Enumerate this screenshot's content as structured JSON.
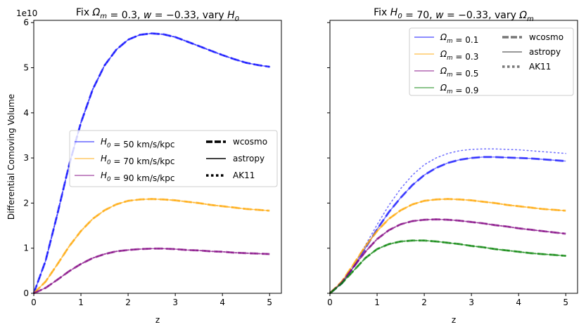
{
  "chart_data": [
    {
      "type": "line",
      "title": "Fix Ω_m = 0.3, w = −0.33, vary H_0",
      "xlabel": "z",
      "ylabel": "Differential Comoving Volume",
      "y_offset_label": "1e10",
      "xlim": [
        0,
        5.25
      ],
      "ylim": [
        0,
        6.05
      ],
      "xticks": [
        "0",
        "1",
        "2",
        "3",
        "4",
        "5"
      ],
      "yticks": [
        "0",
        "1",
        "2",
        "3",
        "4",
        "5",
        "6"
      ],
      "legend_location": "center-right",
      "series": [
        {
          "name": "H_0 = 50 km/s/kpc",
          "color": "#0000ff",
          "x": [
            0,
            0.25,
            0.5,
            0.75,
            1.0,
            1.25,
            1.5,
            1.75,
            2.0,
            2.25,
            2.5,
            2.75,
            3.0,
            3.25,
            3.5,
            3.75,
            4.0,
            4.25,
            4.5,
            4.75,
            5.0
          ],
          "y": [
            0,
            0.72,
            1.75,
            2.85,
            3.78,
            4.52,
            5.05,
            5.4,
            5.62,
            5.73,
            5.76,
            5.74,
            5.68,
            5.58,
            5.48,
            5.38,
            5.28,
            5.19,
            5.11,
            5.06,
            5.02
          ]
        },
        {
          "name": "H_0 = 70 km/s/kpc",
          "color": "#ffa500",
          "x": [
            0,
            0.25,
            0.5,
            0.75,
            1.0,
            1.25,
            1.5,
            1.75,
            2.0,
            2.25,
            2.5,
            2.75,
            3.0,
            3.25,
            3.5,
            3.75,
            4.0,
            4.25,
            4.5,
            4.75,
            5.0
          ],
          "y": [
            0,
            0.26,
            0.64,
            1.04,
            1.38,
            1.65,
            1.84,
            1.97,
            2.05,
            2.08,
            2.09,
            2.08,
            2.06,
            2.03,
            2.0,
            1.96,
            1.93,
            1.9,
            1.87,
            1.85,
            1.83
          ]
        },
        {
          "name": "H_0 = 90 km/s/kpc",
          "color": "#800080",
          "x": [
            0,
            0.25,
            0.5,
            0.75,
            1.0,
            1.25,
            1.5,
            1.75,
            2.0,
            2.25,
            2.5,
            2.75,
            3.0,
            3.25,
            3.5,
            3.75,
            4.0,
            4.25,
            4.5,
            4.75,
            5.0
          ],
          "y": [
            0,
            0.12,
            0.3,
            0.49,
            0.65,
            0.78,
            0.87,
            0.93,
            0.96,
            0.98,
            0.99,
            0.99,
            0.98,
            0.96,
            0.95,
            0.93,
            0.92,
            0.9,
            0.89,
            0.88,
            0.87
          ]
        }
      ],
      "style_legend": [
        {
          "label": "wcosmo",
          "style": "dashed"
        },
        {
          "label": "astropy",
          "style": "solid"
        },
        {
          "label": "AK11",
          "style": "dotted"
        }
      ]
    },
    {
      "type": "line",
      "title": "Fix H_0 = 70, w = −0.33, vary Ω_m",
      "xlabel": "z",
      "ylabel": "",
      "xlim": [
        0,
        5.25
      ],
      "ylim": [
        0,
        6.05
      ],
      "xticks": [
        "0",
        "1",
        "2",
        "3",
        "4",
        "5"
      ],
      "legend_location": "top-right",
      "series": [
        {
          "name": "Ω_m = 0.1",
          "color": "#0000ff",
          "x": [
            0,
            0.25,
            0.5,
            0.75,
            1.0,
            1.25,
            1.5,
            1.75,
            2.0,
            2.25,
            2.5,
            2.75,
            3.0,
            3.25,
            3.5,
            3.75,
            4.0,
            4.25,
            4.5,
            4.75,
            5.0
          ],
          "y": [
            0,
            0.22,
            0.58,
            1.0,
            1.42,
            1.8,
            2.12,
            2.4,
            2.62,
            2.78,
            2.89,
            2.96,
            3.0,
            3.02,
            3.02,
            3.01,
            3.0,
            2.99,
            2.97,
            2.95,
            2.93
          ],
          "ak11_y": [
            0,
            0.22,
            0.6,
            1.06,
            1.52,
            1.95,
            2.32,
            2.62,
            2.85,
            3.0,
            3.1,
            3.16,
            3.19,
            3.2,
            3.2,
            3.19,
            3.18,
            3.16,
            3.14,
            3.12,
            3.1
          ]
        },
        {
          "name": "Ω_m = 0.3",
          "color": "#ffa500",
          "x": [
            0,
            0.25,
            0.5,
            0.75,
            1.0,
            1.25,
            1.5,
            1.75,
            2.0,
            2.25,
            2.5,
            2.75,
            3.0,
            3.25,
            3.5,
            3.75,
            4.0,
            4.25,
            4.5,
            4.75,
            5.0
          ],
          "y": [
            0,
            0.26,
            0.64,
            1.04,
            1.38,
            1.65,
            1.84,
            1.97,
            2.05,
            2.08,
            2.09,
            2.08,
            2.06,
            2.03,
            2.0,
            1.96,
            1.93,
            1.9,
            1.87,
            1.85,
            1.83
          ]
        },
        {
          "name": "Ω_m = 0.5",
          "color": "#800080",
          "x": [
            0,
            0.25,
            0.5,
            0.75,
            1.0,
            1.25,
            1.5,
            1.75,
            2.0,
            2.25,
            2.5,
            2.75,
            3.0,
            3.25,
            3.5,
            3.75,
            4.0,
            4.25,
            4.5,
            4.75,
            5.0
          ],
          "y": [
            0,
            0.24,
            0.58,
            0.92,
            1.2,
            1.4,
            1.53,
            1.6,
            1.63,
            1.64,
            1.63,
            1.61,
            1.58,
            1.55,
            1.51,
            1.48,
            1.44,
            1.41,
            1.38,
            1.35,
            1.32
          ]
        },
        {
          "name": "Ω_m = 0.9",
          "color": "#008000",
          "x": [
            0,
            0.25,
            0.5,
            0.75,
            1.0,
            1.25,
            1.5,
            1.75,
            2.0,
            2.25,
            2.5,
            2.75,
            3.0,
            3.25,
            3.5,
            3.75,
            4.0,
            4.25,
            4.5,
            4.75,
            5.0
          ],
          "y": [
            0,
            0.22,
            0.5,
            0.78,
            0.98,
            1.09,
            1.15,
            1.17,
            1.17,
            1.15,
            1.12,
            1.09,
            1.05,
            1.02,
            0.98,
            0.95,
            0.92,
            0.89,
            0.87,
            0.85,
            0.83
          ]
        }
      ],
      "style_legend": [
        {
          "label": "wcosmo",
          "style": "dashed"
        },
        {
          "label": "astropy",
          "style": "solid"
        },
        {
          "label": "AK11",
          "style": "dotted"
        }
      ]
    }
  ]
}
